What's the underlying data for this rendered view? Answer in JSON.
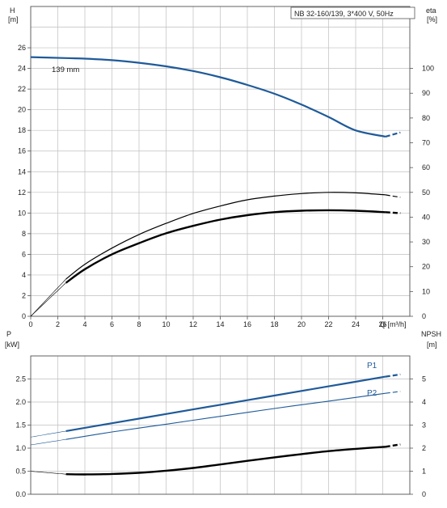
{
  "colors": {
    "blue": "#1f5a99",
    "black": "#000000",
    "grid": "#bfbfbf",
    "axis": "#555555"
  },
  "chart_data": [
    {
      "type": "line",
      "title": "NB 32-160/139, 3*400 V, 50Hz",
      "xlabel": "Q [m³/h]",
      "ylabel_left": "H",
      "ylabel_left_unit": "[m]",
      "ylabel_right": "eta",
      "ylabel_right_unit": "[%]",
      "xlim": [
        0,
        28
      ],
      "ylim_left": [
        0,
        30
      ],
      "ylim_right": [
        0,
        125
      ],
      "x_ticks": [
        0,
        2,
        4,
        6,
        8,
        10,
        12,
        14,
        16,
        18,
        20,
        22,
        24,
        26
      ],
      "y_ticks_left": [
        0,
        2,
        4,
        6,
        8,
        10,
        12,
        14,
        16,
        18,
        20,
        22,
        24,
        26
      ],
      "y_ticks_right": [
        0,
        10,
        20,
        30,
        40,
        50,
        60,
        70,
        80,
        90,
        100
      ],
      "grid": true,
      "series": [
        {
          "name": "139 mm",
          "axis": "left",
          "color": "blue",
          "width": 2.2,
          "dash_from": 26.2,
          "x": [
            0,
            2.6,
            4,
            6,
            8,
            10,
            12,
            14,
            16,
            18,
            20,
            22,
            24,
            26.2,
            27.3
          ],
          "y": [
            25.1,
            25.0,
            24.95,
            24.8,
            24.55,
            24.2,
            23.75,
            23.15,
            22.4,
            21.55,
            20.5,
            19.3,
            18.0,
            17.4,
            17.8
          ]
        },
        {
          "axis": "right",
          "color": "black",
          "width": 1.2,
          "dash_from": 26.2,
          "lead_to": 2.6,
          "x": [
            0,
            2.6,
            4,
            6,
            8,
            10,
            12,
            14,
            16,
            18,
            20,
            22,
            24,
            26.2,
            27.3
          ],
          "y": [
            0,
            15,
            21,
            27.5,
            33,
            37.5,
            41.5,
            44.5,
            47,
            48.5,
            49.5,
            50,
            49.8,
            49,
            48
          ]
        },
        {
          "axis": "right",
          "color": "black",
          "width": 2.4,
          "dash_from": 26.2,
          "lead_to": 2.6,
          "x": [
            0,
            2.6,
            4,
            6,
            8,
            10,
            12,
            14,
            16,
            18,
            20,
            22,
            24,
            26.2,
            27.3
          ],
          "y": [
            0,
            13.5,
            19,
            25,
            29.5,
            33.5,
            36.5,
            39,
            40.8,
            42,
            42.6,
            42.8,
            42.6,
            42,
            41.6
          ]
        }
      ]
    },
    {
      "type": "line",
      "ylabel_left": "P",
      "ylabel_left_unit": "[kW]",
      "ylabel_right": "NPSH",
      "ylabel_right_unit": "[m]",
      "xlim": [
        0,
        28
      ],
      "ylim_left": [
        0,
        3.0
      ],
      "ylim_right": [
        0,
        6
      ],
      "y_ticks_left": [
        0.0,
        0.5,
        1.0,
        1.5,
        2.0,
        2.5
      ],
      "y_ticks_left_labels": [
        "0.0",
        "0.5",
        "1.0",
        "1.5",
        "2.0",
        "2.5"
      ],
      "y_ticks_right": [
        0,
        1,
        2,
        3,
        4,
        5
      ],
      "grid": true,
      "series": [
        {
          "name": "P1",
          "axis": "left",
          "color": "blue",
          "width": 2.2,
          "dash_from": 26.2,
          "lead_to": 2.6,
          "x": [
            0,
            2.6,
            6,
            10,
            14,
            18,
            22,
            26.2,
            27.3
          ],
          "y": [
            1.24,
            1.37,
            1.54,
            1.74,
            1.94,
            2.14,
            2.34,
            2.55,
            2.6
          ]
        },
        {
          "name": "P2",
          "axis": "left",
          "color": "blue",
          "width": 1.1,
          "dash_from": 26.2,
          "lead_to": 2.6,
          "x": [
            0,
            2.6,
            6,
            10,
            14,
            18,
            22,
            26.2,
            27.3
          ],
          "y": [
            1.07,
            1.19,
            1.35,
            1.52,
            1.69,
            1.86,
            2.02,
            2.19,
            2.23
          ]
        },
        {
          "axis": "right",
          "color": "black",
          "width": 2.4,
          "dash_from": 26.2,
          "lead_to": 2.6,
          "x": [
            0,
            2.6,
            4,
            6,
            8,
            10,
            12,
            14,
            16,
            18,
            20,
            22,
            24,
            26.2,
            27.3
          ],
          "y": [
            1.0,
            0.87,
            0.86,
            0.88,
            0.93,
            1.02,
            1.14,
            1.29,
            1.45,
            1.6,
            1.74,
            1.87,
            1.97,
            2.06,
            2.16
          ]
        }
      ]
    }
  ]
}
